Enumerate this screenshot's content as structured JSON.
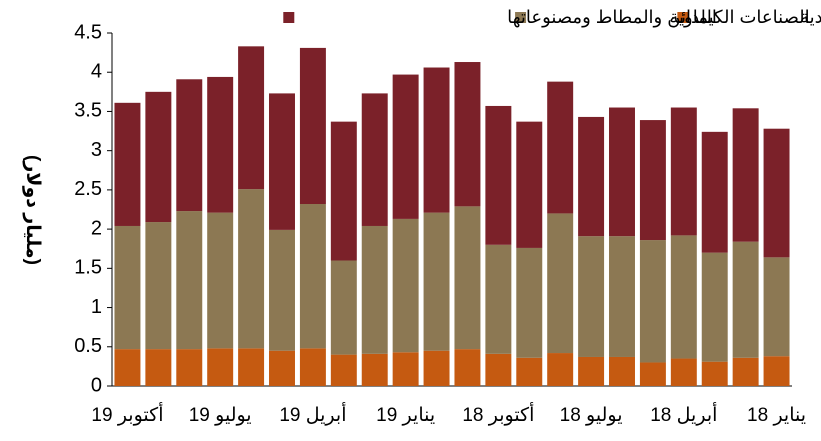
{
  "chart_data": {
    "type": "stacked_bar",
    "y_label": "(مليار دولار)",
    "x_reversed": true,
    "categories": [
      "يناير 18",
      null,
      null,
      "أبريل 18",
      null,
      null,
      "يوليو 18",
      null,
      null,
      "أكتوبر 18",
      null,
      null,
      "يناير 19",
      null,
      null,
      "أبريل 19",
      null,
      null,
      "يوليو 19",
      null,
      null,
      "أكتوبر 19"
    ],
    "series": [
      {
        "name": "المعادن العادية",
        "color": "#c55a11",
        "values": [
          0.38,
          0.36,
          0.31,
          0.35,
          0.3,
          0.37,
          0.37,
          0.42,
          0.36,
          0.41,
          0.47,
          0.45,
          0.43,
          0.41,
          0.4,
          0.48,
          0.45,
          0.48,
          0.48,
          0.47,
          0.47,
          0.47
        ]
      },
      {
        "name": "الصناعات الكيماوية",
        "color": "#8c7853",
        "values": [
          1.26,
          1.48,
          1.39,
          1.57,
          1.56,
          1.54,
          1.54,
          1.78,
          1.4,
          1.39,
          1.82,
          1.76,
          1.7,
          1.63,
          1.2,
          1.84,
          1.54,
          2.03,
          1.73,
          1.76,
          1.62,
          1.57
        ]
      },
      {
        "name": "اللدائن والمطاط ومصنوعاتها",
        "color": "#7b2129",
        "values": [
          1.64,
          1.7,
          1.54,
          1.63,
          1.53,
          1.64,
          1.52,
          1.68,
          1.61,
          1.77,
          1.84,
          1.85,
          1.84,
          1.69,
          1.77,
          1.99,
          1.74,
          1.82,
          1.73,
          1.68,
          1.66,
          1.57
        ]
      }
    ],
    "ylim": [
      0,
      4.5
    ],
    "yticks": [
      0,
      0.5,
      1,
      1.5,
      2,
      2.5,
      3,
      3.5,
      4,
      4.5
    ],
    "legend": "top"
  }
}
